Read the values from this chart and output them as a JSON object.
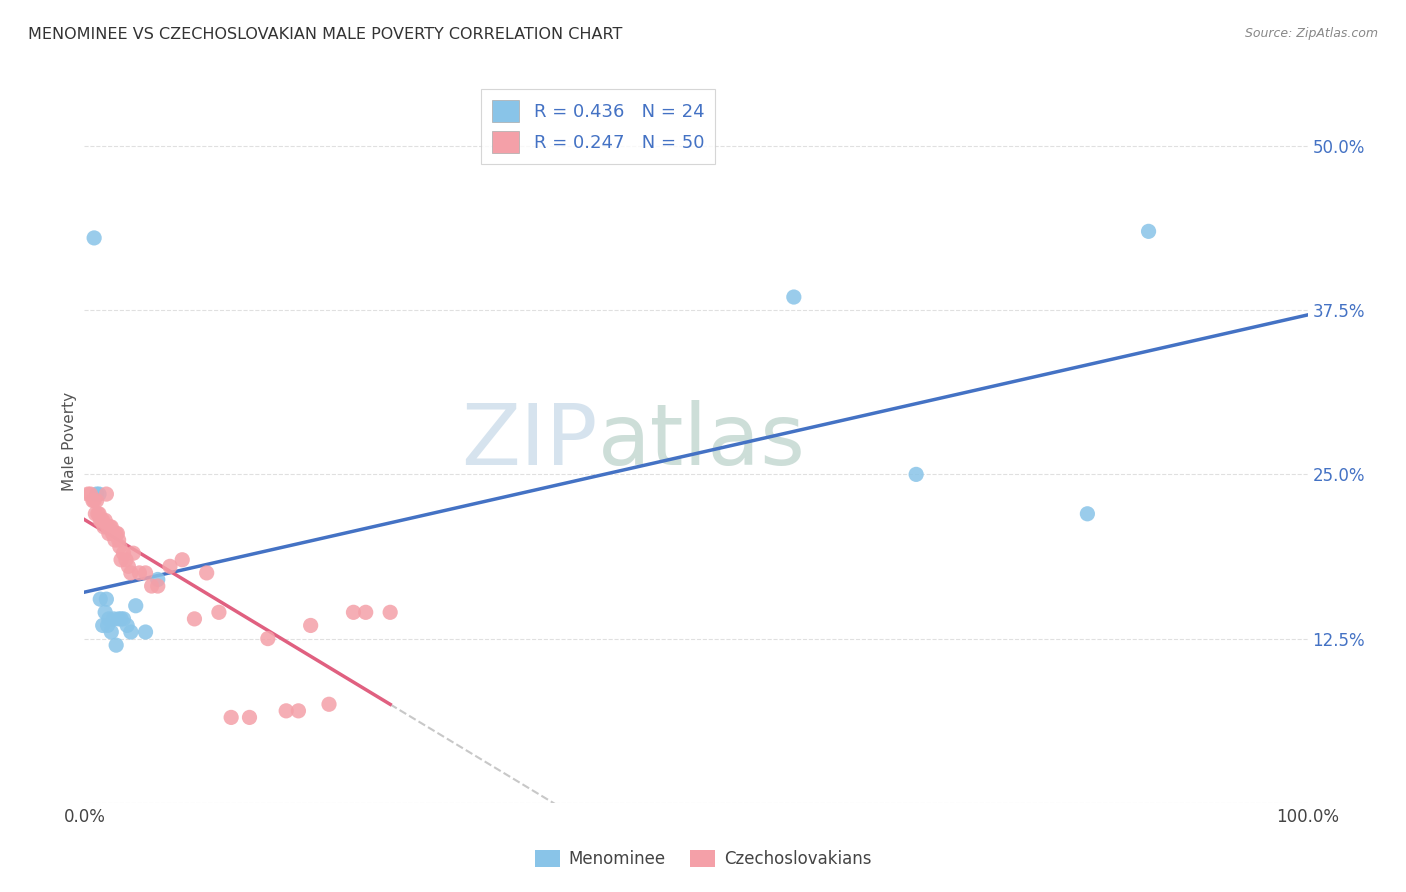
{
  "title": "MENOMINEE VS CZECHOSLOVAKIAN MALE POVERTY CORRELATION CHART",
  "source": "Source: ZipAtlas.com",
  "ylabel": "Male Poverty",
  "ytick_labels": [
    "",
    "12.5%",
    "25.0%",
    "37.5%",
    "50.0%"
  ],
  "ytick_values": [
    0.0,
    0.125,
    0.25,
    0.375,
    0.5
  ],
  "xlim": [
    0.0,
    1.0
  ],
  "ylim": [
    0.0,
    0.55
  ],
  "legend_r1": "0.436",
  "legend_n1": "24",
  "legend_r2": "0.247",
  "legend_n2": "50",
  "color_menominee": "#89C4E8",
  "color_czech": "#F4A0A8",
  "color_line_menominee": "#4472C4",
  "color_line_czech": "#E06080",
  "color_trendline_ext": "#C8C8C8",
  "watermark_color": "#D8E8F0",
  "background_color": "#ffffff",
  "grid_color": "#e0e0e0",
  "menominee_x": [
    0.008,
    0.01,
    0.012,
    0.013,
    0.015,
    0.017,
    0.018,
    0.019,
    0.02,
    0.022,
    0.024,
    0.026,
    0.028,
    0.03,
    0.032,
    0.035,
    0.038,
    0.042,
    0.05,
    0.06,
    0.58,
    0.68,
    0.82,
    0.87
  ],
  "menominee_y": [
    0.43,
    0.235,
    0.235,
    0.155,
    0.135,
    0.145,
    0.155,
    0.135,
    0.14,
    0.13,
    0.14,
    0.12,
    0.14,
    0.14,
    0.14,
    0.135,
    0.13,
    0.15,
    0.13,
    0.17,
    0.385,
    0.25,
    0.22,
    0.435
  ],
  "czech_x": [
    0.003,
    0.005,
    0.007,
    0.008,
    0.009,
    0.01,
    0.011,
    0.012,
    0.013,
    0.014,
    0.015,
    0.016,
    0.017,
    0.018,
    0.019,
    0.02,
    0.021,
    0.022,
    0.023,
    0.024,
    0.025,
    0.026,
    0.027,
    0.028,
    0.029,
    0.03,
    0.032,
    0.034,
    0.036,
    0.038,
    0.04,
    0.045,
    0.05,
    0.055,
    0.06,
    0.07,
    0.08,
    0.09,
    0.1,
    0.11,
    0.12,
    0.135,
    0.15,
    0.165,
    0.175,
    0.185,
    0.2,
    0.22,
    0.23,
    0.25
  ],
  "czech_y": [
    0.235,
    0.235,
    0.23,
    0.23,
    0.22,
    0.23,
    0.22,
    0.22,
    0.215,
    0.215,
    0.215,
    0.21,
    0.215,
    0.235,
    0.21,
    0.205,
    0.21,
    0.21,
    0.205,
    0.205,
    0.2,
    0.205,
    0.205,
    0.2,
    0.195,
    0.185,
    0.19,
    0.185,
    0.18,
    0.175,
    0.19,
    0.175,
    0.175,
    0.165,
    0.165,
    0.18,
    0.185,
    0.14,
    0.175,
    0.145,
    0.065,
    0.065,
    0.125,
    0.07,
    0.07,
    0.135,
    0.075,
    0.145,
    0.145,
    0.145
  ],
  "watermark_zip": "ZIP",
  "watermark_atlas": "atlas"
}
